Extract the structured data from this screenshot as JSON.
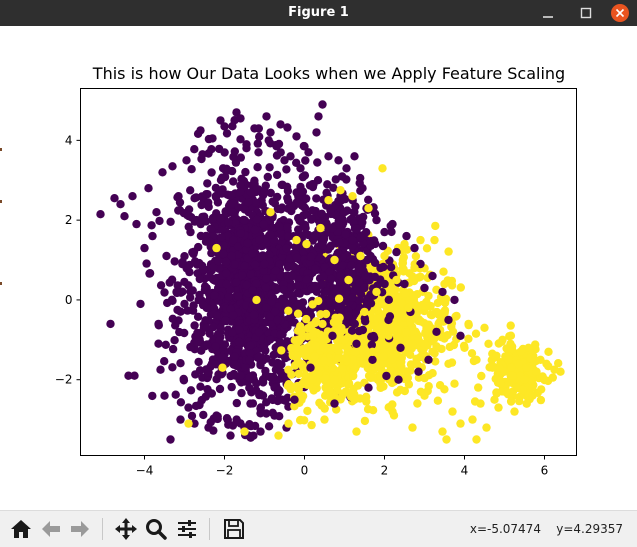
{
  "window": {
    "title": "Figure 1"
  },
  "toolbar": {
    "buttons": [
      "home-icon",
      "back-icon",
      "forward-icon",
      "pan-icon",
      "zoom-icon",
      "configure-icon",
      "save-icon"
    ],
    "coords_x": "x=-5.07474",
    "coords_y": "y=4.29357"
  },
  "chart_data": {
    "type": "scatter",
    "title": "This is how Our Data Looks when we Apply Feature Scaling",
    "xlabel": "",
    "ylabel": "",
    "xlim": [
      -5.6,
      6.8
    ],
    "ylim": [
      -3.9,
      5.3
    ],
    "xticks": [
      -4,
      -2,
      0,
      2,
      4,
      6
    ],
    "yticks": [
      -2,
      0,
      2,
      4
    ],
    "grid": false,
    "series": [
      {
        "class": 0,
        "color": "#440154",
        "points": [
          [
            -5.1,
            2.15
          ],
          [
            -4.85,
            -0.6
          ],
          [
            -4.6,
            2.4
          ],
          [
            -4.75,
            2.55
          ],
          [
            -4.5,
            2.1
          ],
          [
            -4.3,
            2.6
          ],
          [
            -4.2,
            1.9
          ],
          [
            -4.1,
            -0.1
          ],
          [
            -4.25,
            -1.9
          ],
          [
            -4.4,
            -1.9
          ],
          [
            -4.0,
            1.3
          ],
          [
            -3.9,
            2.8
          ],
          [
            -3.8,
            1.6
          ],
          [
            -3.7,
            2.2
          ],
          [
            -3.65,
            -0.6
          ],
          [
            -3.55,
            3.2
          ],
          [
            -3.45,
            1.1
          ],
          [
            -3.6,
            -1.75
          ],
          [
            -3.5,
            -2.4
          ],
          [
            -3.35,
            -3.5
          ],
          [
            -3.3,
            3.35
          ],
          [
            -3.2,
            0.2
          ],
          [
            -3.1,
            -3.0
          ],
          [
            -3.15,
            2.6
          ],
          [
            -3.0,
            -0.1
          ],
          [
            -2.95,
            3.5
          ],
          [
            -2.85,
            1.7
          ],
          [
            -2.9,
            -2.7
          ],
          [
            -2.75,
            -3.1
          ],
          [
            -2.6,
            4.25
          ],
          [
            -2.55,
            3.65
          ],
          [
            -2.45,
            -0.7
          ],
          [
            -2.4,
            -3.2
          ],
          [
            -2.3,
            4.05
          ],
          [
            -2.2,
            -2.9
          ],
          [
            -2.1,
            4.5
          ],
          [
            -2.0,
            4.35
          ],
          [
            -1.95,
            0.4
          ],
          [
            -1.85,
            -3.4
          ],
          [
            -1.8,
            2.2
          ],
          [
            -1.7,
            4.7
          ],
          [
            -1.6,
            4.55
          ],
          [
            -1.5,
            -3.2
          ],
          [
            -1.45,
            3.9
          ],
          [
            -1.35,
            -2.6
          ],
          [
            -1.25,
            4.3
          ],
          [
            -1.15,
            3.7
          ],
          [
            -1.1,
            -3.3
          ],
          [
            -1.0,
            0.9
          ],
          [
            -0.95,
            4.6
          ],
          [
            -0.85,
            4.2
          ],
          [
            -0.75,
            -2.9
          ],
          [
            -0.7,
            3.85
          ],
          [
            -0.6,
            4.4
          ],
          [
            -0.5,
            3.5
          ],
          [
            -0.45,
            -3.2
          ],
          [
            -0.35,
            3.6
          ],
          [
            -0.25,
            -2.5
          ],
          [
            -0.2,
            4.1
          ],
          [
            -0.1,
            3.3
          ],
          [
            0.0,
            3.85
          ],
          [
            0.1,
            3.7
          ],
          [
            0.2,
            2.9
          ],
          [
            0.3,
            4.2
          ],
          [
            0.35,
            4.6
          ],
          [
            0.45,
            4.9
          ],
          [
            0.5,
            2.5
          ],
          [
            0.6,
            3.6
          ],
          [
            0.7,
            1.8
          ],
          [
            0.75,
            -2.6
          ],
          [
            0.85,
            3.5
          ],
          [
            0.9,
            0.6
          ],
          [
            1.0,
            2.2
          ],
          [
            1.05,
            3.3
          ],
          [
            1.1,
            -0.4
          ],
          [
            1.2,
            1.5
          ],
          [
            1.25,
            3.6
          ],
          [
            1.3,
            -1.1
          ],
          [
            1.45,
            2.8
          ],
          [
            1.5,
            0.3
          ],
          [
            1.55,
            2.3
          ],
          [
            1.65,
            1.1
          ],
          [
            1.7,
            -1.5
          ],
          [
            1.8,
            2.0
          ],
          [
            1.9,
            0.8
          ],
          [
            2.0,
            1.7
          ],
          [
            2.1,
            -0.5
          ],
          [
            2.2,
            1.9
          ],
          [
            2.3,
            1.2
          ],
          [
            2.4,
            -1.2
          ],
          [
            2.5,
            0.4
          ],
          [
            2.55,
            1.6
          ],
          [
            2.65,
            -0.3
          ],
          [
            2.75,
            1.3
          ],
          [
            2.85,
            -1.8
          ],
          [
            2.9,
            0.9
          ],
          [
            3.0,
            0.3
          ],
          [
            3.1,
            -1.5
          ],
          [
            3.2,
            0.6
          ],
          [
            3.3,
            -0.8
          ],
          [
            3.45,
            0.2
          ],
          [
            3.6,
            -0.5
          ],
          [
            3.75,
            0.0
          ],
          [
            3.9,
            -0.9
          ],
          [
            -0.15,
            -0.1
          ],
          [
            -0.3,
            0.6
          ],
          [
            0.55,
            0.2
          ],
          [
            0.7,
            -0.9
          ],
          [
            -0.45,
            1.3
          ],
          [
            0.15,
            -1.7
          ],
          [
            0.8,
            1.1
          ],
          [
            1.6,
            -2.2
          ],
          [
            1.35,
            0.8
          ],
          [
            2.35,
            -2.0
          ]
        ]
      },
      {
        "class": 1,
        "color": "#fde725",
        "points": [
          [
            -2.9,
            -3.1
          ],
          [
            -2.2,
            1.3
          ],
          [
            -2.05,
            -1.7
          ],
          [
            -1.5,
            -3.3
          ],
          [
            -1.2,
            0.0
          ],
          [
            -0.85,
            2.2
          ],
          [
            -0.65,
            -3.4
          ],
          [
            -0.4,
            -3.1
          ],
          [
            -0.2,
            1.5
          ],
          [
            0.05,
            1.4
          ],
          [
            0.2,
            -2.0
          ],
          [
            0.4,
            1.8
          ],
          [
            0.5,
            -3.0
          ],
          [
            0.6,
            2.5
          ],
          [
            0.75,
            1.0
          ],
          [
            0.9,
            2.75
          ],
          [
            1.0,
            -1.0
          ],
          [
            1.1,
            0.5
          ],
          [
            1.2,
            2.6
          ],
          [
            1.25,
            -2.5
          ],
          [
            1.3,
            -3.3
          ],
          [
            1.4,
            1.1
          ],
          [
            1.5,
            -0.3
          ],
          [
            1.6,
            2.3
          ],
          [
            1.7,
            -1.3
          ],
          [
            1.8,
            0.2
          ],
          [
            1.9,
            -2.1
          ],
          [
            1.95,
            3.3
          ],
          [
            2.0,
            1.1
          ],
          [
            2.1,
            -0.9
          ],
          [
            2.2,
            -2.8
          ],
          [
            2.3,
            0.5
          ],
          [
            2.4,
            -1.6
          ],
          [
            2.5,
            1.4
          ],
          [
            2.6,
            -0.2
          ],
          [
            2.7,
            -3.2
          ],
          [
            2.75,
            0.8
          ],
          [
            2.85,
            -1.0
          ],
          [
            2.9,
            1.5
          ],
          [
            3.0,
            -2.4
          ],
          [
            3.1,
            0.1
          ],
          [
            3.2,
            -1.3
          ],
          [
            3.25,
            1.5
          ],
          [
            3.35,
            -0.6
          ],
          [
            3.45,
            -3.3
          ],
          [
            3.5,
            0.4
          ],
          [
            3.6,
            -1.6
          ],
          [
            3.7,
            -2.8
          ],
          [
            3.8,
            -0.4
          ],
          [
            3.9,
            -3.1
          ],
          [
            4.0,
            -1.2
          ],
          [
            4.1,
            -0.6
          ],
          [
            4.2,
            -3.0
          ],
          [
            4.3,
            -1.5
          ],
          [
            4.4,
            -2.6
          ],
          [
            4.5,
            -0.7
          ],
          [
            4.6,
            -1.1
          ],
          [
            4.7,
            -1.7
          ],
          [
            4.75,
            -2.5
          ],
          [
            4.8,
            -1.4
          ],
          [
            4.9,
            -2.1
          ],
          [
            4.95,
            -1.0
          ],
          [
            5.0,
            -1.8
          ],
          [
            5.05,
            -2.3
          ],
          [
            5.1,
            -1.5
          ],
          [
            5.15,
            -1.1
          ],
          [
            5.2,
            -1.9
          ],
          [
            5.3,
            -2.2
          ],
          [
            5.35,
            -1.6
          ],
          [
            5.4,
            -1.3
          ],
          [
            5.5,
            -2.0
          ],
          [
            5.55,
            -1.7
          ],
          [
            5.65,
            -1.45
          ],
          [
            5.7,
            -2.4
          ],
          [
            5.8,
            -1.8
          ],
          [
            5.9,
            -1.5
          ],
          [
            6.0,
            -2.0
          ],
          [
            6.1,
            -1.3
          ],
          [
            6.25,
            -1.75
          ],
          [
            6.4,
            -1.8
          ],
          [
            4.3,
            -3.5
          ],
          [
            3.55,
            -3.5
          ],
          [
            4.55,
            -3.2
          ],
          [
            3.75,
            -2.1
          ],
          [
            4.85,
            -2.7
          ],
          [
            5.25,
            -2.8
          ],
          [
            5.6,
            -1.2
          ],
          [
            6.05,
            -1.6
          ]
        ]
      }
    ]
  }
}
